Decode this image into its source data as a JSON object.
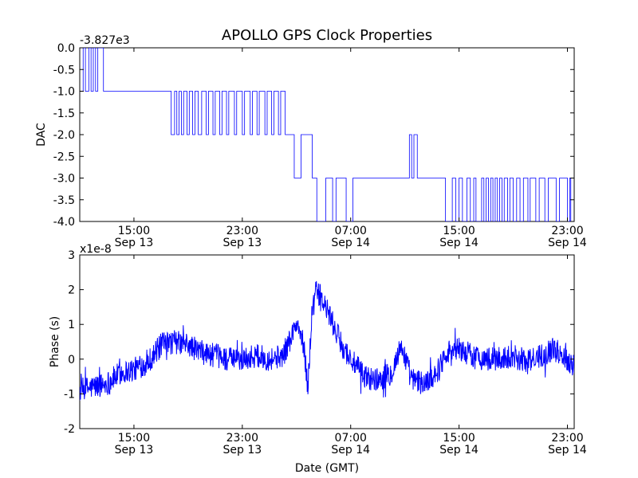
{
  "figure": {
    "title": "APOLLO GPS Clock Properties",
    "xlabel": "Date (GMT)"
  },
  "chart_data": [
    {
      "type": "line",
      "ylabel": "DAC",
      "offset_label": "-3.827e3",
      "ylim": [
        -4.0,
        0.0
      ],
      "yticks": [
        0.0,
        -0.5,
        -1.0,
        -1.5,
        -2.0,
        -2.5,
        -3.0,
        -3.5,
        -4.0
      ],
      "ytick_labels": [
        "0.0",
        "-0.5",
        "-1.0",
        "-1.5",
        "-2.0",
        "-2.5",
        "-3.0",
        "-3.5",
        "-4.0"
      ],
      "xlim": [
        "Sep 13 11:00",
        "Sep 14 23:30"
      ],
      "xticks": [
        {
          "time": "15:00",
          "date": "Sep 13"
        },
        {
          "time": "23:00",
          "date": "Sep 13"
        },
        {
          "time": "07:00",
          "date": "Sep 14"
        },
        {
          "time": "15:00",
          "date": "Sep 14"
        },
        {
          "time": "23:00",
          "date": "Sep 14"
        }
      ],
      "color": "#0000ff",
      "series": [
        {
          "steps": [
            [
              "Sep 13 11:00",
              -1.0
            ],
            [
              "Sep 13 11:15",
              0.0
            ],
            [
              "Sep 13 11:25",
              -1.0
            ],
            [
              "Sep 13 11:40",
              0.0
            ],
            [
              "Sep 13 11:50",
              -1.0
            ],
            [
              "Sep 13 12:00",
              0.0
            ],
            [
              "Sep 13 12:10",
              -1.0
            ],
            [
              "Sep 13 12:20",
              0.0
            ],
            [
              "Sep 13 12:45",
              -1.0
            ],
            [
              "Sep 13 17:45",
              -2.0
            ],
            [
              "Sep 13 18:00",
              -1.0
            ],
            [
              "Sep 13 18:10",
              -2.0
            ],
            [
              "Sep 13 18:20",
              -1.0
            ],
            [
              "Sep 13 18:30",
              -2.0
            ],
            [
              "Sep 13 18:40",
              -1.0
            ],
            [
              "Sep 13 18:55",
              -2.0
            ],
            [
              "Sep 13 19:05",
              -1.0
            ],
            [
              "Sep 13 19:20",
              -2.0
            ],
            [
              "Sep 13 19:30",
              -1.0
            ],
            [
              "Sep 13 19:45",
              -2.0
            ],
            [
              "Sep 13 20:00",
              -1.0
            ],
            [
              "Sep 13 20:20",
              -2.0
            ],
            [
              "Sep 13 20:30",
              -1.0
            ],
            [
              "Sep 13 20:50",
              -2.0
            ],
            [
              "Sep 13 21:00",
              -1.0
            ],
            [
              "Sep 13 21:20",
              -2.0
            ],
            [
              "Sep 13 21:30",
              -1.0
            ],
            [
              "Sep 13 21:50",
              -2.0
            ],
            [
              "Sep 13 22:00",
              -1.0
            ],
            [
              "Sep 13 22:25",
              -2.0
            ],
            [
              "Sep 13 22:35",
              -1.0
            ],
            [
              "Sep 13 23:00",
              -2.0
            ],
            [
              "Sep 13 23:10",
              -1.0
            ],
            [
              "Sep 13 23:35",
              -2.0
            ],
            [
              "Sep 13 23:45",
              -1.0
            ],
            [
              "Sep 14 00:05",
              -2.0
            ],
            [
              "Sep 14 00:15",
              -1.0
            ],
            [
              "Sep 14 00:40",
              -2.0
            ],
            [
              "Sep 14 00:50",
              -1.0
            ],
            [
              "Sep 14 01:10",
              -2.0
            ],
            [
              "Sep 14 01:20",
              -1.0
            ],
            [
              "Sep 14 01:40",
              -2.0
            ],
            [
              "Sep 14 01:50",
              -1.0
            ],
            [
              "Sep 14 02:10",
              -2.0
            ],
            [
              "Sep 14 02:50",
              -3.0
            ],
            [
              "Sep 14 03:20",
              -2.0
            ],
            [
              "Sep 14 04:10",
              -3.0
            ],
            [
              "Sep 14 04:30",
              -4.0
            ],
            [
              "Sep 14 05:10",
              -3.0
            ],
            [
              "Sep 14 05:40",
              -4.0
            ],
            [
              "Sep 14 05:55",
              -3.0
            ],
            [
              "Sep 14 06:40",
              -4.0
            ],
            [
              "Sep 14 07:10",
              -3.0
            ],
            [
              "Sep 14 11:20",
              -2.0
            ],
            [
              "Sep 14 11:30",
              -3.0
            ],
            [
              "Sep 14 11:40",
              -2.0
            ],
            [
              "Sep 14 11:55",
              -3.0
            ],
            [
              "Sep 14 14:00",
              -4.0
            ],
            [
              "Sep 14 14:30",
              -3.0
            ],
            [
              "Sep 14 14:45",
              -4.0
            ],
            [
              "Sep 14 15:00",
              -3.0
            ],
            [
              "Sep 14 15:15",
              -4.0
            ],
            [
              "Sep 14 15:35",
              -3.0
            ],
            [
              "Sep 14 15:50",
              -4.0
            ],
            [
              "Sep 14 16:05",
              -3.0
            ],
            [
              "Sep 14 16:15",
              -4.0
            ],
            [
              "Sep 14 16:40",
              -3.0
            ],
            [
              "Sep 14 16:50",
              -4.0
            ],
            [
              "Sep 14 17:00",
              -3.0
            ],
            [
              "Sep 14 17:10",
              -4.0
            ],
            [
              "Sep 14 17:20",
              -3.0
            ],
            [
              "Sep 14 17:30",
              -4.0
            ],
            [
              "Sep 14 17:40",
              -3.0
            ],
            [
              "Sep 14 17:50",
              -4.0
            ],
            [
              "Sep 14 18:00",
              -3.0
            ],
            [
              "Sep 14 18:10",
              -4.0
            ],
            [
              "Sep 14 18:20",
              -3.0
            ],
            [
              "Sep 14 18:35",
              -4.0
            ],
            [
              "Sep 14 18:45",
              -3.0
            ],
            [
              "Sep 14 19:00",
              -4.0
            ],
            [
              "Sep 14 19:15",
              -3.0
            ],
            [
              "Sep 14 19:30",
              -4.0
            ],
            [
              "Sep 14 19:45",
              -3.0
            ],
            [
              "Sep 14 20:05",
              -4.0
            ],
            [
              "Sep 14 20:15",
              -3.0
            ],
            [
              "Sep 14 20:40",
              -4.0
            ],
            [
              "Sep 14 20:55",
              -3.0
            ],
            [
              "Sep 14 21:20",
              -4.0
            ],
            [
              "Sep 14 21:35",
              -3.0
            ],
            [
              "Sep 14 22:10",
              -4.0
            ],
            [
              "Sep 14 22:25",
              -3.0
            ],
            [
              "Sep 14 23:00",
              -4.0
            ],
            [
              "Sep 14 23:10",
              -3.0
            ],
            [
              "Sep 14 23:15",
              -4.0
            ]
          ]
        }
      ]
    },
    {
      "type": "line",
      "ylabel": "Phase (s)",
      "offset_label": "x1e-8",
      "ylim": [
        -2,
        3
      ],
      "yticks": [
        -2,
        -1,
        0,
        1,
        2,
        3
      ],
      "ytick_labels": [
        "-2",
        "-1",
        "0",
        "1",
        "2",
        "3"
      ],
      "xlim": [
        "Sep 13 11:00",
        "Sep 14 23:30"
      ],
      "xticks": [
        {
          "time": "15:00",
          "date": "Sep 13"
        },
        {
          "time": "23:00",
          "date": "Sep 13"
        },
        {
          "time": "07:00",
          "date": "Sep 14"
        },
        {
          "time": "15:00",
          "date": "Sep 14"
        },
        {
          "time": "23:00",
          "date": "Sep 14"
        }
      ],
      "color": "#0000ff",
      "series": [
        {
          "trend": [
            [
              "Sep 13 11:00",
              -0.9
            ],
            [
              "Sep 13 12:00",
              -0.8
            ],
            [
              "Sep 13 13:00",
              -0.7
            ],
            [
              "Sep 13 14:00",
              -0.4
            ],
            [
              "Sep 13 15:00",
              -0.3
            ],
            [
              "Sep 13 16:00",
              -0.1
            ],
            [
              "Sep 13 17:00",
              0.4
            ],
            [
              "Sep 13 18:00",
              0.5
            ],
            [
              "Sep 13 19:00",
              0.4
            ],
            [
              "Sep 13 20:00",
              0.2
            ],
            [
              "Sep 13 21:00",
              0.1
            ],
            [
              "Sep 13 22:00",
              0.0
            ],
            [
              "Sep 13 23:00",
              0.0
            ],
            [
              "Sep 14 00:00",
              0.1
            ],
            [
              "Sep 14 01:00",
              0.0
            ],
            [
              "Sep 14 02:00",
              0.1
            ],
            [
              "Sep 14 03:00",
              1.0
            ],
            [
              "Sep 14 03:30",
              0.5
            ],
            [
              "Sep 14 03:50",
              -0.8
            ],
            [
              "Sep 14 04:10",
              1.5
            ],
            [
              "Sep 14 04:30",
              2.0
            ],
            [
              "Sep 14 05:00",
              1.6
            ],
            [
              "Sep 14 05:30",
              1.2
            ],
            [
              "Sep 14 06:00",
              0.7
            ],
            [
              "Sep 14 06:30",
              0.3
            ],
            [
              "Sep 14 07:00",
              0.0
            ],
            [
              "Sep 14 08:00",
              -0.5
            ],
            [
              "Sep 14 09:00",
              -0.6
            ],
            [
              "Sep 14 10:00",
              -0.4
            ],
            [
              "Sep 14 10:45",
              0.4
            ],
            [
              "Sep 14 11:30",
              -0.6
            ],
            [
              "Sep 14 12:30",
              -0.7
            ],
            [
              "Sep 14 13:30",
              -0.3
            ],
            [
              "Sep 14 14:00",
              0.2
            ],
            [
              "Sep 14 15:00",
              0.3
            ],
            [
              "Sep 14 16:00",
              0.1
            ],
            [
              "Sep 14 17:00",
              0.0
            ],
            [
              "Sep 14 18:00",
              0.0
            ],
            [
              "Sep 14 19:00",
              0.1
            ],
            [
              "Sep 14 20:00",
              -0.1
            ],
            [
              "Sep 14 21:00",
              0.1
            ],
            [
              "Sep 14 22:00",
              0.3
            ],
            [
              "Sep 14 23:00",
              0.0
            ],
            [
              "Sep 14 23:30",
              -0.2
            ]
          ],
          "noise_amplitude": 0.35
        }
      ]
    }
  ]
}
